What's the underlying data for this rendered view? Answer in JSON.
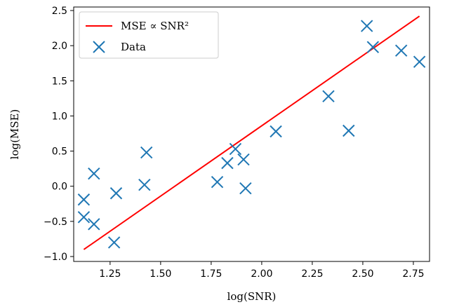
{
  "chart_data": {
    "type": "scatter",
    "xlabel": "log(SNR)",
    "ylabel": "log(MSE)",
    "xlim": [
      1.07,
      2.83
    ],
    "ylim": [
      -1.07,
      2.55
    ],
    "xticks": [
      "1.25",
      "1.50",
      "1.75",
      "2.00",
      "2.25",
      "2.50",
      "2.75"
    ],
    "yticks": [
      "−1.0",
      "−0.5",
      "0.0",
      "0.5",
      "1.0",
      "1.5",
      "2.0",
      "2.5"
    ],
    "grid": false,
    "legend_position": "top-left",
    "series": [
      {
        "name": "Data",
        "kind": "scatter",
        "marker": "x",
        "color": "#1f77b4",
        "points": [
          {
            "x": 1.12,
            "y": -0.19
          },
          {
            "x": 1.12,
            "y": -0.44
          },
          {
            "x": 1.17,
            "y": 0.18
          },
          {
            "x": 1.17,
            "y": -0.54
          },
          {
            "x": 1.27,
            "y": -0.8
          },
          {
            "x": 1.28,
            "y": -0.1
          },
          {
            "x": 1.42,
            "y": 0.02
          },
          {
            "x": 1.43,
            "y": 0.48
          },
          {
            "x": 1.78,
            "y": 0.06
          },
          {
            "x": 1.83,
            "y": 0.33
          },
          {
            "x": 1.87,
            "y": 0.53
          },
          {
            "x": 1.91,
            "y": 0.38
          },
          {
            "x": 1.92,
            "y": -0.03
          },
          {
            "x": 2.07,
            "y": 0.78
          },
          {
            "x": 2.33,
            "y": 1.28
          },
          {
            "x": 2.43,
            "y": 0.79
          },
          {
            "x": 2.52,
            "y": 2.28
          },
          {
            "x": 2.55,
            "y": 1.98
          },
          {
            "x": 2.69,
            "y": 1.93
          },
          {
            "x": 2.78,
            "y": 1.77
          }
        ]
      },
      {
        "name": "MSE ∝ SNR²",
        "kind": "line",
        "color": "#ff0000",
        "points": [
          {
            "x": 1.12,
            "y": -0.9
          },
          {
            "x": 2.78,
            "y": 2.42
          }
        ]
      }
    ]
  }
}
